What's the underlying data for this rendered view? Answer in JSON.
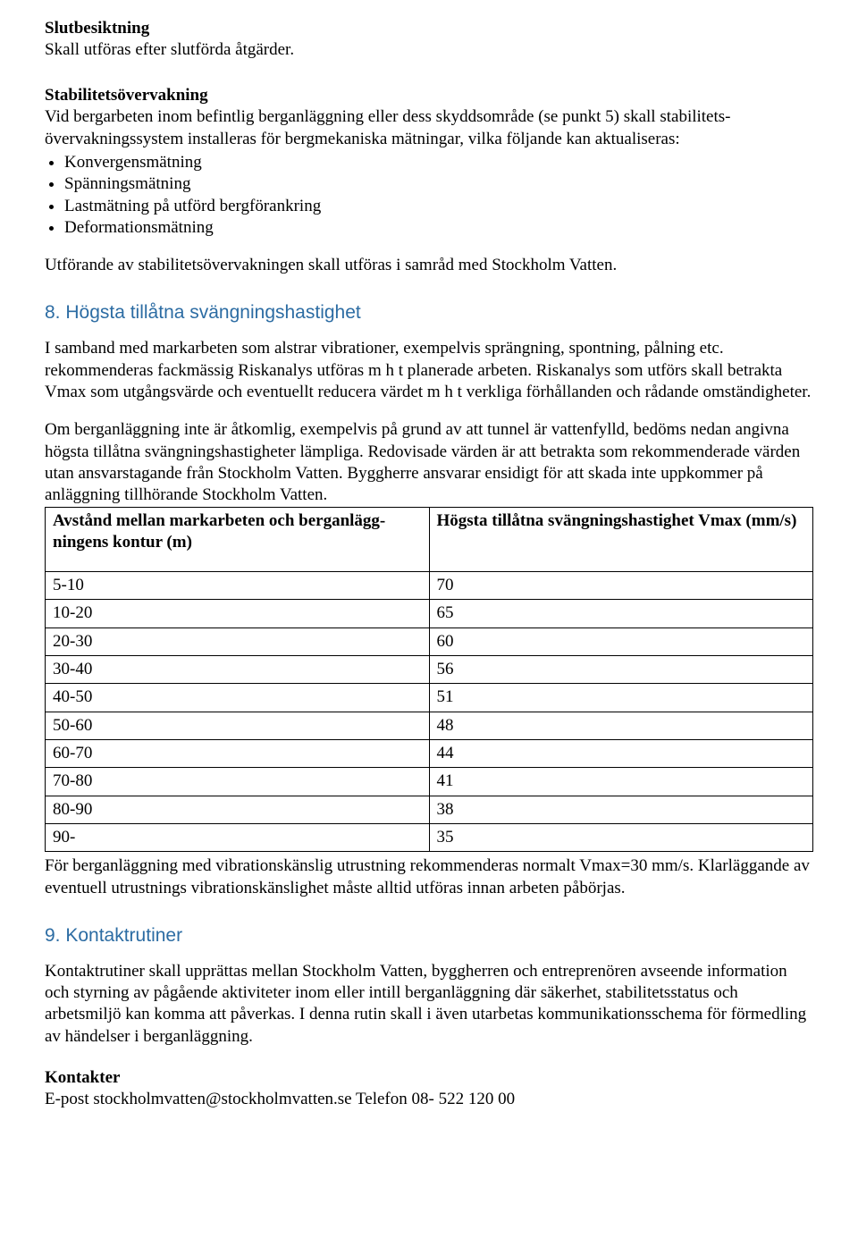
{
  "s1": {
    "subhead": "Slutbesiktning",
    "body": "Skall utföras efter slutförda åtgärder."
  },
  "s2": {
    "subhead": "Stabilitetsövervakning",
    "intro": "Vid bergarbeten inom befintlig berganläggning eller dess skyddsområde (se punkt 5) skall stabilitets­övervakningssystem installeras för bergmekaniska mätningar, vilka följande kan aktualiseras:",
    "bullets": [
      "Konvergensmätning",
      "Spänningsmätning",
      "Lastmätning på utförd bergförankring",
      "Deformationsmätning"
    ],
    "outro": "Utförande av stabilitetsövervakningen skall utföras i samråd med Stockholm Vatten."
  },
  "s8": {
    "heading": "8. Högsta tillåtna svängningshastighet",
    "p1": "I samband med markarbeten som alstrar vibrationer, exempelvis sprängning, spontning, pålning etc. rekommenderas fackmässig Riskanalys utföras m h t planerade arbeten. Riskanalys som utförs skall betrakta Vmax som utgångsvärde och eventuellt reducera värdet m h t verkliga förhållanden och rådande omständigheter.",
    "p2": "Om berganläggning inte är åtkomlig, exempelvis på grund av att tunnel är vattenfylld, bedöms nedan angivna högsta tillåtna svängningshastigheter lämpliga. Redovisade värden är att betrakta som rekommenderade värden utan ansvarstagande från Stockholm Vatten. Byggherre ansvarar ensidigt för att skada inte uppkommer på anläggning tillhörande Stockholm Vatten.",
    "table": {
      "col1": "Avstånd mellan markarbeten och berganlägg­ningens kontur (m)",
      "col2": "Högsta tillåtna svängningshastighet Vmax (mm/s)",
      "rows": [
        [
          "5-10",
          "70"
        ],
        [
          "10-20",
          "65"
        ],
        [
          "20-30",
          "60"
        ],
        [
          "30-40",
          "56"
        ],
        [
          "40-50",
          "51"
        ],
        [
          "50-60",
          "48"
        ],
        [
          "60-70",
          "44"
        ],
        [
          "70-80",
          "41"
        ],
        [
          "80-90",
          "38"
        ],
        [
          "90-",
          "35"
        ]
      ]
    },
    "p3": "För berganläggning med vibrationskänslig utrustning rekommenderas normalt Vmax=30 mm/s. Klar­läggande av eventuell utrustnings vibrationskänslighet måste alltid utföras innan arbeten påbörjas."
  },
  "s9": {
    "heading": "9. Kontaktrutiner",
    "p1": "Kontaktrutiner skall upprättas mellan Stockholm Vatten, byggherren och entreprenören avseende information och styrning av pågående aktiviteter inom eller intill berganläggning där säkerhet, stabi­litetsstatus och arbetsmiljö kan komma att påverkas. I denna rutin skall i även utarbetas kommunika­tionsschema för förmedling av händelser i berganläggning.",
    "contacts_label": "Kontakter",
    "contacts_line": "E-post stockholmvatten@stockholmvatten.se Telefon 08- 522 120 00"
  }
}
